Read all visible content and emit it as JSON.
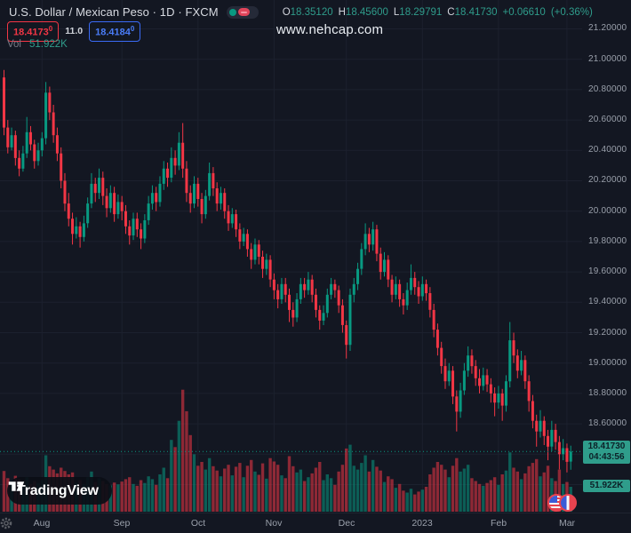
{
  "header": {
    "symbol_title": "U.S. Dollar / Mexican Peso · 1D · FXCM",
    "ohlc": {
      "o_label": "O",
      "o": "18.35120",
      "h_label": "H",
      "h": "18.45600",
      "l_label": "L",
      "l": "18.29791",
      "c_label": "C",
      "c": "18.41730",
      "change": "+0.06610",
      "change_pct": "(+0.36%)"
    },
    "bid": "18.4173",
    "bid_sup": "0",
    "spread": "11.0",
    "ask": "18.4184",
    "ask_sup": "0",
    "vol_label": "Vol",
    "vol_value": "51.922K"
  },
  "watermark": "www.nehcap.com",
  "badges": {
    "last_price": "18.41730",
    "countdown": "04:43:56",
    "volume": "51.922K"
  },
  "logo_text": "TradingView",
  "colors": {
    "background": "#131722",
    "grid": "#1c212e",
    "up": "#089981",
    "down": "#f23645",
    "up_volume": "rgba(8,153,129,0.55)",
    "down_volume": "rgba(242,54,69,0.55)",
    "last_price_line": "#089981",
    "axis_text": "#9aa0ab",
    "badge_bg": "#2f9d8b",
    "ask_blue": "#2962ff",
    "bid_red": "#f23645"
  },
  "chart_data": {
    "type": "candlestick",
    "title": "U.S. Dollar / Mexican Peso",
    "interval": "1D",
    "exchange": "FXCM",
    "last_price": 18.4173,
    "current_volume_k": 51.922,
    "y_axis": {
      "visible_min": 18.01,
      "visible_max": 21.39,
      "tick_step": 0.2
    },
    "price_ticks": [
      {
        "text": "21.20000",
        "value": 21.2
      },
      {
        "text": "21.00000",
        "value": 21.0
      },
      {
        "text": "20.80000",
        "value": 20.8
      },
      {
        "text": "20.60000",
        "value": 20.6
      },
      {
        "text": "20.40000",
        "value": 20.4
      },
      {
        "text": "20.20000",
        "value": 20.2
      },
      {
        "text": "20.00000",
        "value": 20.0
      },
      {
        "text": "19.80000",
        "value": 19.8
      },
      {
        "text": "19.60000",
        "value": 19.6
      },
      {
        "text": "19.40000",
        "value": 19.4
      },
      {
        "text": "19.20000",
        "value": 19.2
      },
      {
        "text": "19.00000",
        "value": 19.0
      },
      {
        "text": "18.80000",
        "value": 18.8
      },
      {
        "text": "18.60000",
        "value": 18.6
      },
      {
        "text": "18.20000",
        "value": 18.2
      }
    ],
    "x_labels": [
      {
        "text": "Aug",
        "index": 10
      },
      {
        "text": "Sep",
        "index": 31
      },
      {
        "text": "Oct",
        "index": 51
      },
      {
        "text": "Nov",
        "index": 71
      },
      {
        "text": "Dec",
        "index": 90
      },
      {
        "text": "2023",
        "index": 110
      },
      {
        "text": "Feb",
        "index": 130
      },
      {
        "text": "Mar",
        "index": 148
      }
    ],
    "volume_axis": {
      "max_k": 260
    },
    "candles_format": [
      "open",
      "high",
      "low",
      "close",
      "volume_k"
    ],
    "candles": [
      [
        20.88,
        20.93,
        20.5,
        20.55,
        85
      ],
      [
        20.55,
        20.6,
        20.38,
        20.42,
        70
      ],
      [
        20.42,
        20.55,
        20.4,
        20.5,
        62
      ],
      [
        20.5,
        20.53,
        20.3,
        20.35,
        75
      ],
      [
        20.35,
        20.4,
        20.23,
        20.28,
        68
      ],
      [
        20.28,
        20.43,
        20.26,
        20.38,
        55
      ],
      [
        20.38,
        20.62,
        20.35,
        20.52,
        72
      ],
      [
        20.52,
        20.56,
        20.4,
        20.44,
        58
      ],
      [
        20.44,
        20.47,
        20.28,
        20.33,
        64
      ],
      [
        20.33,
        20.45,
        20.3,
        20.4,
        60
      ],
      [
        20.4,
        20.52,
        20.36,
        20.48,
        66
      ],
      [
        20.48,
        20.85,
        20.44,
        20.78,
        118
      ],
      [
        20.78,
        20.82,
        20.6,
        20.65,
        95
      ],
      [
        20.65,
        20.7,
        20.45,
        20.5,
        88
      ],
      [
        20.5,
        20.55,
        20.33,
        20.38,
        80
      ],
      [
        20.38,
        20.42,
        20.15,
        20.2,
        92
      ],
      [
        20.2,
        20.25,
        20.0,
        20.05,
        85
      ],
      [
        20.05,
        20.12,
        19.9,
        19.95,
        78
      ],
      [
        19.95,
        19.99,
        19.78,
        19.85,
        82
      ],
      [
        19.85,
        19.96,
        19.82,
        19.9,
        60
      ],
      [
        19.9,
        19.93,
        19.76,
        19.83,
        66
      ],
      [
        19.83,
        19.97,
        19.8,
        19.92,
        58
      ],
      [
        19.92,
        20.09,
        19.89,
        20.05,
        72
      ],
      [
        20.05,
        20.25,
        20.02,
        20.18,
        84
      ],
      [
        20.18,
        20.22,
        20.06,
        20.12,
        62
      ],
      [
        20.12,
        20.28,
        20.08,
        20.22,
        70
      ],
      [
        20.22,
        20.26,
        20.04,
        20.1,
        64
      ],
      [
        20.1,
        20.15,
        19.96,
        20.02,
        58
      ],
      [
        20.02,
        20.17,
        19.99,
        20.12,
        55
      ],
      [
        20.12,
        20.16,
        19.93,
        19.98,
        61
      ],
      [
        19.98,
        20.11,
        19.95,
        20.06,
        57
      ],
      [
        20.06,
        20.1,
        19.94,
        20.0,
        63
      ],
      [
        20.0,
        20.04,
        19.85,
        19.9,
        68
      ],
      [
        19.9,
        19.94,
        19.78,
        19.84,
        72
      ],
      [
        19.84,
        19.99,
        19.81,
        19.95,
        58
      ],
      [
        19.95,
        19.99,
        19.83,
        19.88,
        54
      ],
      [
        19.88,
        19.92,
        19.75,
        19.82,
        66
      ],
      [
        19.82,
        19.98,
        19.79,
        19.94,
        60
      ],
      [
        19.94,
        20.1,
        19.91,
        20.05,
        74
      ],
      [
        20.05,
        20.17,
        20.01,
        20.12,
        68
      ],
      [
        20.12,
        20.16,
        20.0,
        20.06,
        56
      ],
      [
        20.06,
        20.23,
        20.03,
        20.18,
        78
      ],
      [
        20.18,
        20.33,
        20.14,
        20.28,
        92
      ],
      [
        20.28,
        20.32,
        20.16,
        20.22,
        70
      ],
      [
        20.22,
        20.42,
        20.19,
        20.35,
        150
      ],
      [
        20.35,
        20.4,
        20.24,
        20.3,
        135
      ],
      [
        20.3,
        20.52,
        20.27,
        20.45,
        190
      ],
      [
        20.45,
        20.58,
        20.22,
        20.28,
        255
      ],
      [
        20.28,
        20.33,
        20.06,
        20.12,
        210
      ],
      [
        20.12,
        20.17,
        19.99,
        20.05,
        160
      ],
      [
        20.05,
        20.23,
        20.02,
        20.18,
        120
      ],
      [
        20.18,
        20.22,
        20.03,
        20.08,
        96
      ],
      [
        20.08,
        20.12,
        19.92,
        19.98,
        104
      ],
      [
        19.98,
        20.14,
        19.95,
        20.1,
        88
      ],
      [
        20.1,
        20.32,
        20.07,
        20.25,
        112
      ],
      [
        20.25,
        20.29,
        20.1,
        20.15,
        95
      ],
      [
        20.15,
        20.19,
        20.0,
        20.05,
        86
      ],
      [
        20.05,
        20.16,
        20.01,
        20.12,
        74
      ],
      [
        20.12,
        20.15,
        19.95,
        20.0,
        90
      ],
      [
        20.0,
        20.04,
        19.87,
        19.92,
        98
      ],
      [
        19.92,
        20.02,
        19.89,
        19.98,
        76
      ],
      [
        19.98,
        20.01,
        19.83,
        19.88,
        94
      ],
      [
        19.88,
        19.92,
        19.75,
        19.8,
        102
      ],
      [
        19.8,
        19.89,
        19.77,
        19.85,
        72
      ],
      [
        19.85,
        19.88,
        19.7,
        19.75,
        96
      ],
      [
        19.75,
        19.79,
        19.62,
        19.68,
        108
      ],
      [
        19.68,
        19.82,
        19.65,
        19.78,
        84
      ],
      [
        19.78,
        19.81,
        19.65,
        19.7,
        77
      ],
      [
        19.7,
        19.74,
        19.56,
        19.62,
        101
      ],
      [
        19.62,
        19.72,
        19.58,
        19.68,
        69
      ],
      [
        19.68,
        19.71,
        19.5,
        19.55,
        112
      ],
      [
        19.55,
        19.59,
        19.42,
        19.48,
        105
      ],
      [
        19.48,
        19.52,
        19.36,
        19.42,
        98
      ],
      [
        19.42,
        19.56,
        19.39,
        19.52,
        76
      ],
      [
        19.52,
        19.56,
        19.4,
        19.45,
        70
      ],
      [
        19.45,
        19.49,
        19.27,
        19.35,
        116
      ],
      [
        19.35,
        19.4,
        19.24,
        19.3,
        95
      ],
      [
        19.3,
        19.46,
        19.27,
        19.42,
        82
      ],
      [
        19.42,
        19.56,
        19.39,
        19.52,
        88
      ],
      [
        19.52,
        19.56,
        19.43,
        19.48,
        64
      ],
      [
        19.48,
        19.6,
        19.45,
        19.55,
        72
      ],
      [
        19.55,
        19.58,
        19.4,
        19.45,
        80
      ],
      [
        19.45,
        19.49,
        19.3,
        19.35,
        92
      ],
      [
        19.35,
        19.38,
        19.22,
        19.28,
        104
      ],
      [
        19.28,
        19.38,
        19.25,
        19.33,
        66
      ],
      [
        19.33,
        19.49,
        19.3,
        19.45,
        78
      ],
      [
        19.45,
        19.56,
        19.42,
        19.52,
        70
      ],
      [
        19.52,
        19.55,
        19.43,
        19.48,
        56
      ],
      [
        19.48,
        19.51,
        19.33,
        19.38,
        84
      ],
      [
        19.38,
        19.42,
        19.2,
        19.25,
        98
      ],
      [
        19.25,
        19.28,
        19.03,
        19.12,
        132
      ],
      [
        19.12,
        19.49,
        19.08,
        19.45,
        140
      ],
      [
        19.45,
        19.56,
        19.4,
        19.52,
        96
      ],
      [
        19.52,
        19.66,
        19.48,
        19.62,
        88
      ],
      [
        19.62,
        19.79,
        19.58,
        19.75,
        102
      ],
      [
        19.75,
        19.92,
        19.71,
        19.85,
        118
      ],
      [
        19.85,
        19.89,
        19.73,
        19.78,
        84
      ],
      [
        19.78,
        19.93,
        19.74,
        19.88,
        108
      ],
      [
        19.88,
        19.91,
        19.67,
        19.72,
        94
      ],
      [
        19.72,
        19.76,
        19.55,
        19.6,
        86
      ],
      [
        19.6,
        19.73,
        19.57,
        19.68,
        62
      ],
      [
        19.68,
        19.71,
        19.5,
        19.55,
        74
      ],
      [
        19.55,
        19.58,
        19.4,
        19.45,
        68
      ],
      [
        19.45,
        19.57,
        19.42,
        19.52,
        50
      ],
      [
        19.52,
        19.55,
        19.37,
        19.42,
        58
      ],
      [
        19.42,
        19.46,
        19.32,
        19.38,
        44
      ],
      [
        19.38,
        19.53,
        19.35,
        19.48,
        40
      ],
      [
        19.48,
        19.65,
        19.45,
        19.56,
        48
      ],
      [
        19.56,
        19.6,
        19.45,
        19.5,
        36
      ],
      [
        19.5,
        19.54,
        19.39,
        19.44,
        42
      ],
      [
        19.44,
        19.57,
        19.41,
        19.52,
        46
      ],
      [
        19.52,
        19.55,
        19.41,
        19.46,
        52
      ],
      [
        19.46,
        19.5,
        19.3,
        19.35,
        78
      ],
      [
        19.35,
        19.39,
        19.17,
        19.22,
        92
      ],
      [
        19.22,
        19.26,
        19.05,
        19.1,
        104
      ],
      [
        19.1,
        19.14,
        18.93,
        18.98,
        98
      ],
      [
        18.98,
        19.03,
        18.83,
        18.88,
        88
      ],
      [
        18.88,
        19.0,
        18.85,
        18.95,
        72
      ],
      [
        18.95,
        18.98,
        18.73,
        18.78,
        96
      ],
      [
        18.78,
        18.82,
        18.55,
        18.68,
        112
      ],
      [
        18.68,
        18.87,
        18.64,
        18.82,
        84
      ],
      [
        18.82,
        19.0,
        18.79,
        18.95,
        90
      ],
      [
        18.95,
        19.11,
        18.91,
        19.05,
        98
      ],
      [
        19.05,
        19.09,
        18.93,
        18.98,
        70
      ],
      [
        18.98,
        19.02,
        18.85,
        18.9,
        64
      ],
      [
        18.9,
        18.96,
        18.8,
        18.85,
        58
      ],
      [
        18.85,
        18.97,
        18.82,
        18.92,
        54
      ],
      [
        18.92,
        18.96,
        18.81,
        18.86,
        60
      ],
      [
        18.86,
        18.9,
        18.74,
        18.8,
        66
      ],
      [
        18.8,
        18.84,
        18.65,
        18.74,
        72
      ],
      [
        18.74,
        18.85,
        18.7,
        18.8,
        56
      ],
      [
        18.8,
        18.83,
        18.62,
        18.72,
        78
      ],
      [
        18.72,
        18.92,
        18.68,
        18.88,
        86
      ],
      [
        18.88,
        19.27,
        18.84,
        19.15,
        124
      ],
      [
        19.15,
        19.2,
        19.0,
        19.05,
        92
      ],
      [
        19.05,
        19.09,
        18.9,
        18.95,
        84
      ],
      [
        18.95,
        19.08,
        18.92,
        19.02,
        68
      ],
      [
        19.02,
        19.05,
        18.83,
        18.88,
        80
      ],
      [
        18.88,
        18.92,
        18.68,
        18.75,
        95
      ],
      [
        18.75,
        18.79,
        18.57,
        18.62,
        102
      ],
      [
        18.62,
        18.66,
        18.45,
        18.55,
        110
      ],
      [
        18.55,
        18.69,
        18.51,
        18.62,
        74
      ],
      [
        18.62,
        18.65,
        18.46,
        18.52,
        82
      ],
      [
        18.52,
        18.56,
        18.36,
        18.45,
        96
      ],
      [
        18.45,
        18.62,
        18.42,
        18.56,
        70
      ],
      [
        18.56,
        18.6,
        18.43,
        18.48,
        64
      ],
      [
        18.48,
        18.52,
        18.3,
        18.4,
        88
      ],
      [
        18.4,
        18.5,
        18.36,
        18.44,
        58
      ],
      [
        18.44,
        18.47,
        18.28,
        18.35,
        62
      ],
      [
        18.3512,
        18.456,
        18.29791,
        18.4173,
        51.922
      ]
    ]
  }
}
